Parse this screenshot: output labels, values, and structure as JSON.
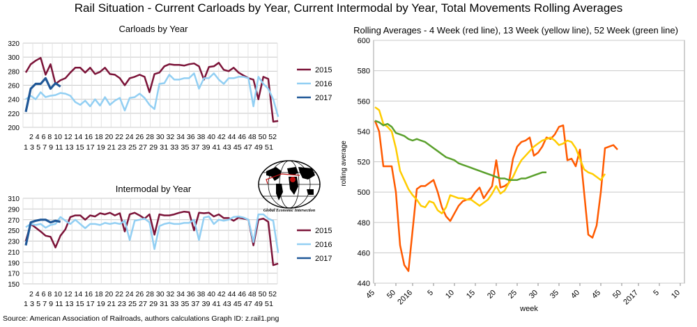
{
  "title": "Rail Situation - Current Carloads by Year, Current Intermodal by Year, Total Movements Rolling Averages",
  "source": "Source: American Association of Railroads, authors calculations     Graph ID: z.rail1.png",
  "logo_text": "Global Economic Intersection",
  "chart_data": [
    {
      "type": "line",
      "title": "Carloads by Year",
      "xlabel": "",
      "ylabel": "",
      "ylim": [
        200,
        320
      ],
      "yticks": [
        200,
        220,
        240,
        260,
        280,
        300,
        320
      ],
      "x_tick_row1": [
        "2",
        "4",
        "6",
        "8",
        "10",
        "12",
        "14",
        "16",
        "18",
        "20",
        "22",
        "24",
        "26",
        "28",
        "30",
        "32",
        "34",
        "36",
        "38",
        "40",
        "42",
        "44",
        "46",
        "48",
        "50",
        "52"
      ],
      "x_tick_row2": [
        "1",
        "3",
        "5",
        "7",
        "9",
        "11",
        "13",
        "15",
        "17",
        "19",
        "21",
        "23",
        "25",
        "27",
        "29",
        "31",
        "33",
        "35",
        "37",
        "39",
        "41",
        "43",
        "45",
        "47",
        "49",
        "51"
      ],
      "x_tick_row1_text": "2 4 6 8 10 12 14 16 18 20 22 24 26 28 30 32 34 36 38 40 42 44 46 48 50 52",
      "x_tick_row2_text": "1 3 5 7 9 11 13 15 17 19 21 23 25 27 29 31 33 35 37 39 41 43 45 47 49 51",
      "legend": "right",
      "series": [
        {
          "name": "2015",
          "color": "#7b1338",
          "values": [
            278,
            290,
            295,
            299,
            275,
            290,
            262,
            267,
            270,
            278,
            285,
            285,
            278,
            285,
            276,
            279,
            285,
            276,
            275,
            270,
            260,
            270,
            272,
            275,
            272,
            250,
            276,
            278,
            287,
            290,
            289,
            289,
            288,
            290,
            291,
            287,
            268,
            286,
            287,
            292,
            282,
            280,
            285,
            278,
            274,
            270,
            268,
            240,
            272,
            269,
            208,
            209
          ]
        },
        {
          "name": "2016",
          "color": "#92cff3",
          "values": [
            240,
            245,
            240,
            250,
            243,
            245,
            246,
            249,
            248,
            245,
            236,
            232,
            238,
            230,
            240,
            231,
            243,
            232,
            238,
            242,
            224,
            242,
            243,
            248,
            242,
            232,
            226,
            262,
            263,
            275,
            268,
            268,
            270,
            270,
            277,
            255,
            270,
            270,
            277,
            268,
            262,
            270,
            270,
            272,
            272,
            270,
            230,
            272,
            262,
            255,
            240,
            215
          ]
        },
        {
          "name": "2017",
          "color": "#1f5797",
          "values": [
            222,
            255,
            262,
            262,
            270,
            255,
            263,
            258
          ]
        }
      ]
    },
    {
      "type": "line",
      "title": "Intermodal by Year",
      "xlabel": "",
      "ylabel": "",
      "ylim": [
        150,
        310
      ],
      "yticks": [
        150,
        170,
        190,
        210,
        230,
        250,
        270,
        290,
        310
      ],
      "x_tick_row1": [
        "2",
        "4",
        "6",
        "8",
        "10",
        "12",
        "14",
        "16",
        "18",
        "20",
        "22",
        "24",
        "26",
        "28",
        "30",
        "32",
        "34",
        "36",
        "38",
        "40",
        "42",
        "44",
        "46",
        "48",
        "50",
        "52"
      ],
      "x_tick_row2": [
        "1",
        "3",
        "5",
        "7",
        "9",
        "11",
        "13",
        "15",
        "17",
        "19",
        "21",
        "23",
        "25",
        "27",
        "29",
        "31",
        "33",
        "35",
        "37",
        "39",
        "41",
        "43",
        "45",
        "47",
        "49",
        "51"
      ],
      "x_tick_row1_text": "2 4 6 8 10 12 14 16 18 20 22 24 26 28 30 32 34 36 38 40 42 44 46 48 50 52",
      "x_tick_row2_text": "1 3 5 7 9 11 13 15 17 19 21 23 25 27 29 31 33 35 37 39 41 43 45 47 49 51",
      "legend": "right",
      "series": [
        {
          "name": "2015",
          "color": "#7b1338",
          "values": [
            230,
            262,
            255,
            248,
            240,
            238,
            218,
            240,
            252,
            275,
            278,
            278,
            270,
            278,
            276,
            282,
            280,
            283,
            278,
            282,
            248,
            280,
            283,
            278,
            272,
            280,
            242,
            280,
            278,
            278,
            280,
            283,
            285,
            284,
            250,
            283,
            282,
            283,
            276,
            280,
            273,
            273,
            268,
            274,
            272,
            270,
            222,
            270,
            272,
            266,
            185,
            188
          ]
        },
        {
          "name": "2016",
          "color": "#92cff3",
          "values": [
            256,
            262,
            260,
            262,
            255,
            260,
            262,
            275,
            268,
            262,
            270,
            262,
            254,
            262,
            262,
            260,
            264,
            262,
            264,
            262,
            268,
            232,
            268,
            270,
            272,
            265,
            215,
            258,
            262,
            264,
            262,
            262,
            264,
            264,
            270,
            232,
            274,
            276,
            262,
            270,
            268,
            270,
            275,
            276,
            274,
            270,
            228,
            280,
            280,
            272,
            268,
            208
          ]
        },
        {
          "name": "2017",
          "color": "#1f5797",
          "values": [
            222,
            265,
            268,
            270,
            270,
            265,
            268,
            266
          ]
        }
      ]
    },
    {
      "type": "line",
      "title": "Rolling Averages - 4 Week (red line), 13 Week (yellow line), 52 Week (green line)",
      "xlabel": "week",
      "ylabel": "rolling average",
      "ylim": [
        440,
        600
      ],
      "yticks": [
        440,
        460,
        480,
        500,
        520,
        540,
        560,
        580,
        600
      ],
      "x_tick_labels": [
        "45",
        "50",
        "2016",
        "5",
        "10",
        "15",
        "20",
        "25",
        "30",
        "35",
        "40",
        "45",
        "50",
        "2017",
        "5",
        "10"
      ],
      "x_tick_positions": [
        0,
        5,
        9,
        14,
        19,
        24,
        29,
        34,
        39,
        44,
        49,
        54,
        59,
        63,
        68,
        73
      ],
      "xlim": [
        0,
        74
      ],
      "legend": "none",
      "series": [
        {
          "name": "4 Week",
          "color": "#ff5a00",
          "values": [
            547,
            540,
            517,
            517,
            517,
            500,
            465,
            452,
            448,
            475,
            502,
            504,
            504,
            506,
            508,
            500,
            490,
            484,
            481,
            486,
            491,
            494,
            495,
            496,
            500,
            503,
            496,
            500,
            504,
            521,
            503,
            504,
            506,
            522,
            530,
            533,
            534,
            536,
            524,
            526,
            530,
            536,
            535,
            538,
            543,
            544,
            521,
            522,
            517,
            528,
            500,
            472,
            470,
            478,
            500,
            529,
            530,
            531,
            528
          ]
        },
        {
          "name": "13 Week",
          "color": "#ffcc00",
          "values": [
            556,
            554,
            545,
            543,
            540,
            529,
            514,
            508,
            502,
            498,
            495,
            491,
            490,
            494,
            493,
            488,
            486,
            490,
            498,
            497,
            496,
            496,
            495,
            495,
            493,
            491,
            493,
            495,
            499,
            504,
            499,
            501,
            506,
            510,
            516,
            521,
            524,
            527,
            530,
            532,
            534,
            535,
            536,
            534,
            531,
            532,
            534,
            533,
            529,
            522,
            515,
            513,
            512,
            510,
            508,
            512
          ]
        },
        {
          "name": "52 Week",
          "color": "#5aa02c",
          "values": [
            547,
            546,
            544,
            545,
            543,
            539,
            538,
            537,
            535,
            534,
            535,
            534,
            533,
            531,
            529,
            527,
            525,
            523,
            522,
            521,
            519,
            518,
            517,
            516,
            515,
            514,
            513,
            512,
            511,
            510,
            509,
            509,
            508,
            508,
            508,
            509,
            509,
            510,
            511,
            512,
            513,
            513
          ]
        }
      ]
    }
  ]
}
